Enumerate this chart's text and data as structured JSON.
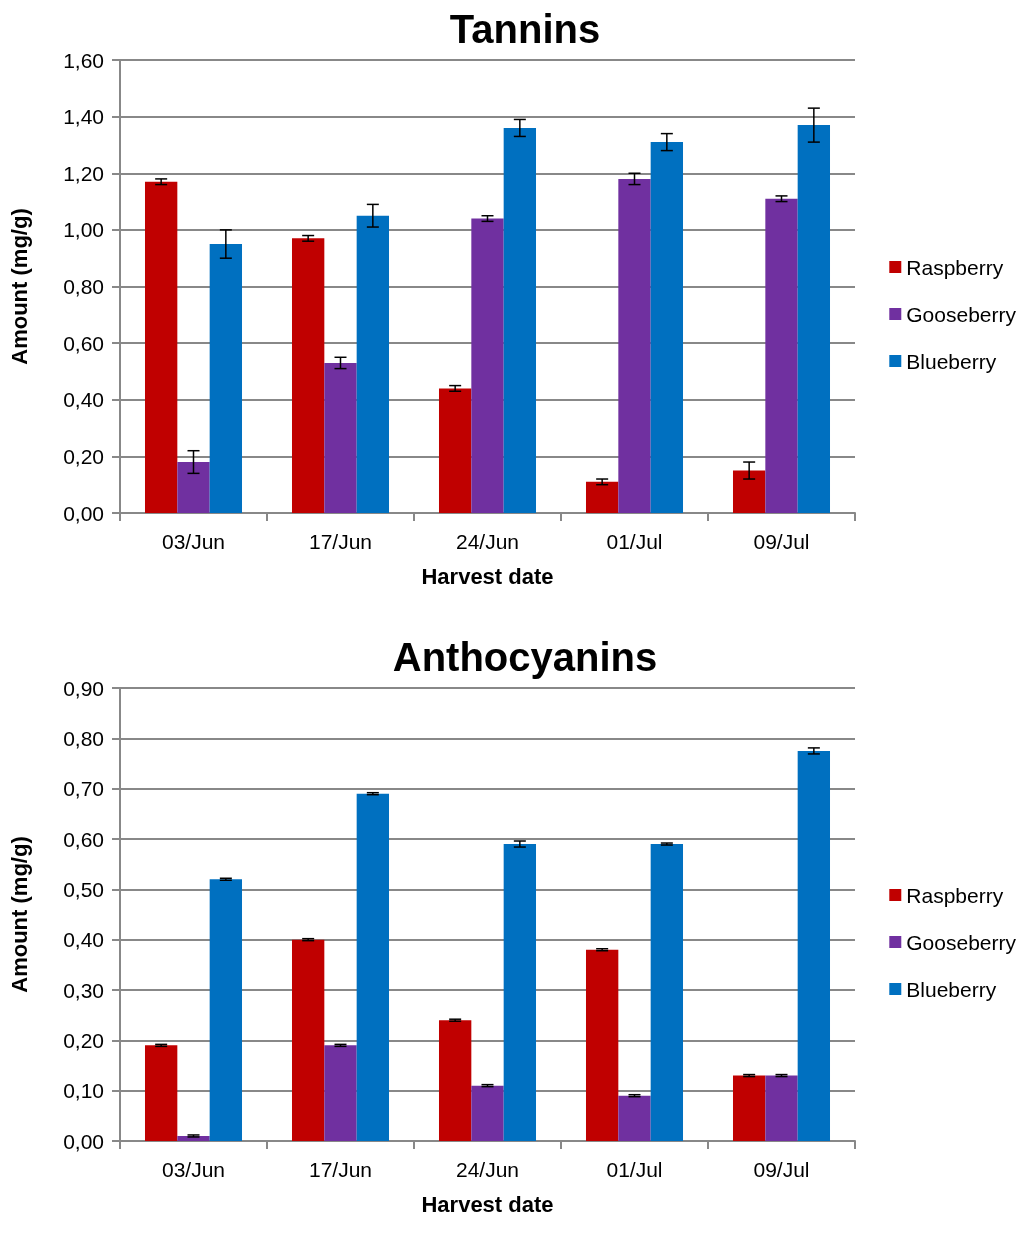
{
  "chart_data": [
    {
      "type": "bar",
      "title": "Tannins",
      "xlabel": "Harvest date",
      "ylabel": "Amount (mg/g)",
      "categories": [
        "03/Jun",
        "17/Jun",
        "24/Jun",
        "01/Jul",
        "09/Jul"
      ],
      "series": [
        {
          "name": "Raspberry",
          "color": "#c00000",
          "values": [
            1.17,
            0.97,
            0.44,
            0.11,
            0.15
          ],
          "errors": [
            0.01,
            0.01,
            0.01,
            0.01,
            0.03
          ]
        },
        {
          "name": "Gooseberry",
          "color": "#7030a0",
          "values": [
            0.18,
            0.53,
            1.04,
            1.18,
            1.11
          ],
          "errors": [
            0.04,
            0.02,
            0.01,
            0.02,
            0.01
          ]
        },
        {
          "name": "Blueberry",
          "color": "#0070c0",
          "values": [
            0.95,
            1.05,
            1.36,
            1.31,
            1.37
          ],
          "errors": [
            0.05,
            0.04,
            0.03,
            0.03,
            0.06
          ]
        }
      ],
      "ylim": [
        0,
        1.6
      ],
      "yticks": [
        {
          "value": 0,
          "label": "0,00"
        },
        {
          "value": 0.2,
          "label": "0,20"
        },
        {
          "value": 0.4,
          "label": "0,40"
        },
        {
          "value": 0.6,
          "label": "0,60"
        },
        {
          "value": 0.8,
          "label": "0,80"
        },
        {
          "value": 1.0,
          "label": "1,00"
        },
        {
          "value": 1.2,
          "label": "1,20"
        },
        {
          "value": 1.4,
          "label": "1,40"
        },
        {
          "value": 1.6,
          "label": "1,60"
        }
      ],
      "grid": "y",
      "legend": "right"
    },
    {
      "type": "bar",
      "title": "Anthocyanins",
      "xlabel": "Harvest date",
      "ylabel": "Amount (mg/g)",
      "categories": [
        "03/Jun",
        "17/Jun",
        "24/Jun",
        "01/Jul",
        "09/Jul"
      ],
      "series": [
        {
          "name": "Raspberry",
          "color": "#c00000",
          "values": [
            0.19,
            0.4,
            0.24,
            0.38,
            0.13
          ],
          "errors": [
            0.002,
            0.002,
            0.002,
            0.002,
            0.002
          ]
        },
        {
          "name": "Gooseberry",
          "color": "#7030a0",
          "values": [
            0.01,
            0.19,
            0.11,
            0.09,
            0.13
          ],
          "errors": [
            0.002,
            0.002,
            0.002,
            0.002,
            0.002
          ]
        },
        {
          "name": "Blueberry",
          "color": "#0070c0",
          "values": [
            0.52,
            0.69,
            0.59,
            0.59,
            0.775
          ],
          "errors": [
            0.002,
            0.002,
            0.006,
            0.002,
            0.006
          ]
        }
      ],
      "ylim": [
        0,
        0.9
      ],
      "yticks": [
        {
          "value": 0,
          "label": "0,00"
        },
        {
          "value": 0.1,
          "label": "0,10"
        },
        {
          "value": 0.2,
          "label": "0,20"
        },
        {
          "value": 0.3,
          "label": "0,30"
        },
        {
          "value": 0.4,
          "label": "0,40"
        },
        {
          "value": 0.5,
          "label": "0,50"
        },
        {
          "value": 0.6,
          "label": "0,60"
        },
        {
          "value": 0.7,
          "label": "0,70"
        },
        {
          "value": 0.8,
          "label": "0,80"
        },
        {
          "value": 0.9,
          "label": "0,90"
        }
      ],
      "grid": "y",
      "legend": "right"
    }
  ]
}
